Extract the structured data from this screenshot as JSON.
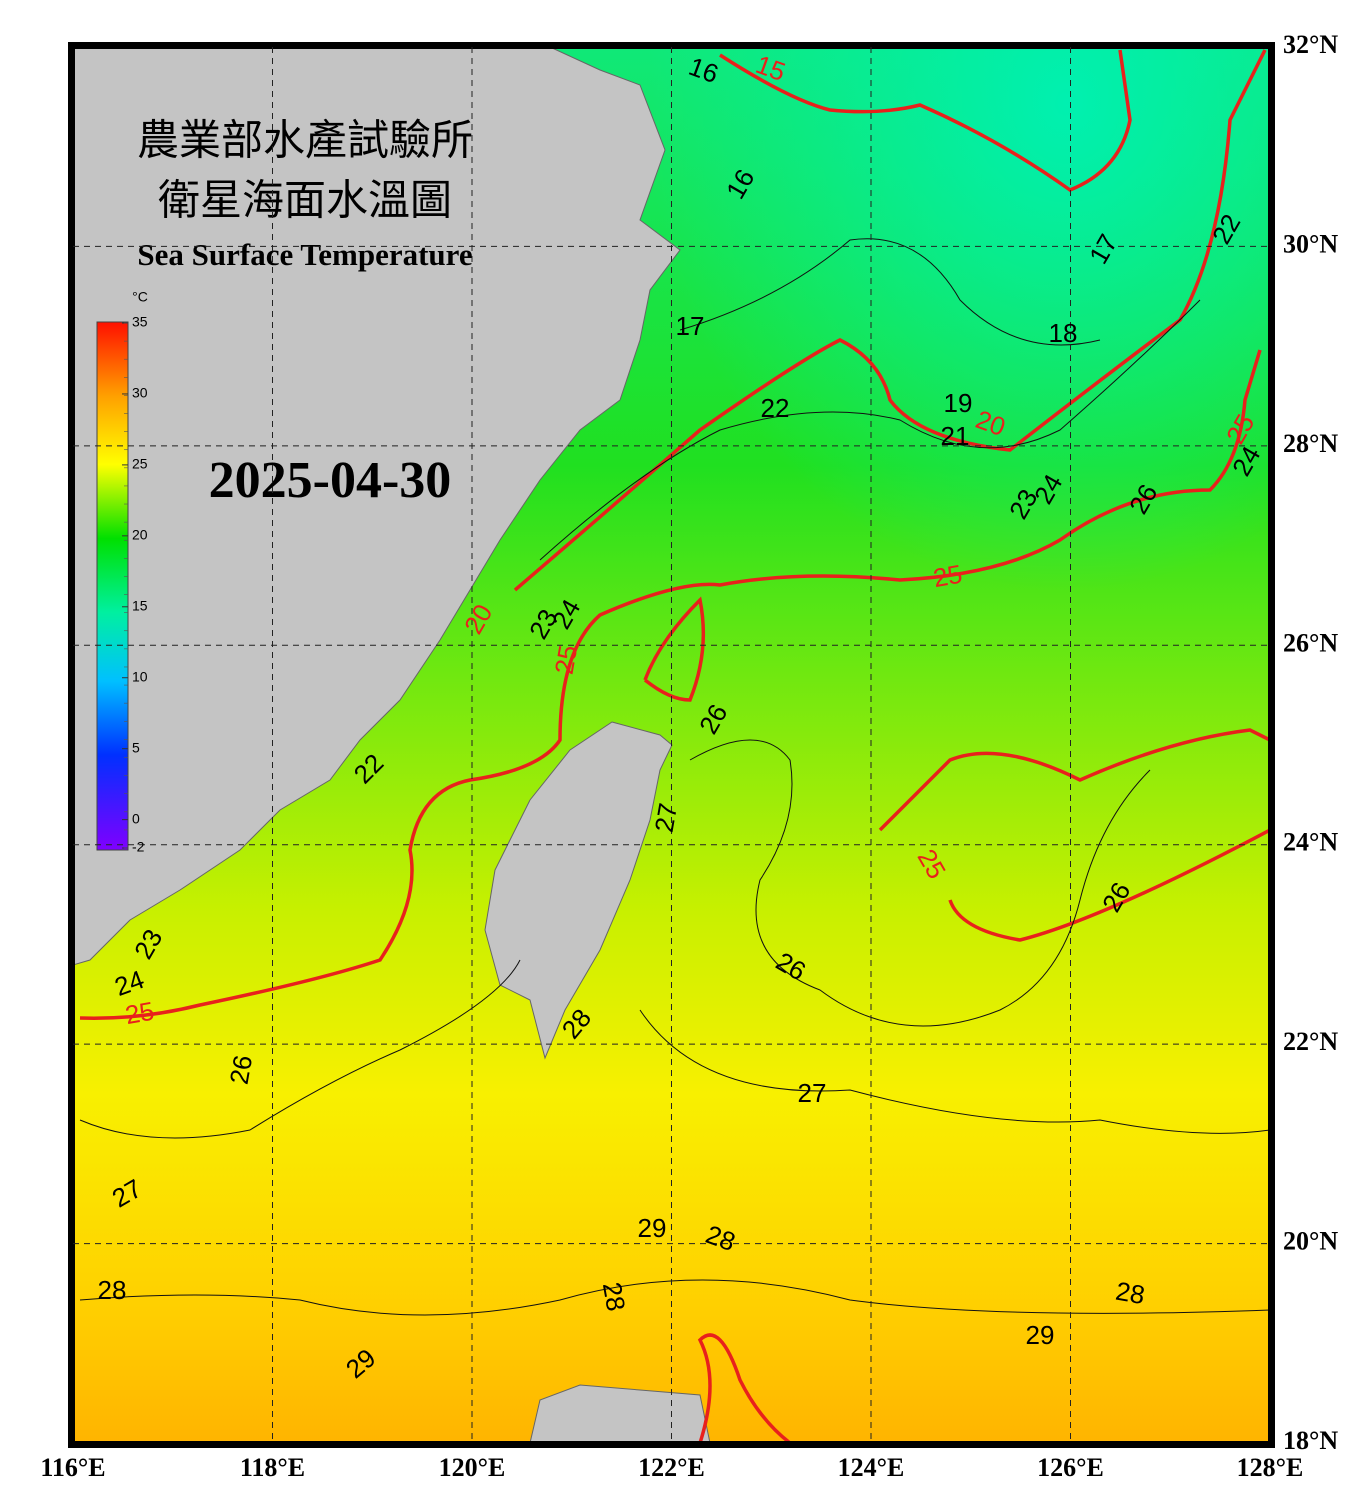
{
  "map": {
    "title_zh_1": "農業部水產試驗所",
    "title_zh_2": "衛星海面水溫圖",
    "title_en": "Sea Surface Temperature",
    "date": "2025-04-30",
    "xlim": [
      116,
      128
    ],
    "ylim": [
      18,
      32
    ],
    "xticks": [
      {
        "value": 116,
        "label": "116°E"
      },
      {
        "value": 118,
        "label": "118°E"
      },
      {
        "value": 120,
        "label": "120°E"
      },
      {
        "value": 122,
        "label": "122°E"
      },
      {
        "value": 124,
        "label": "124°E"
      },
      {
        "value": 126,
        "label": "126°E"
      },
      {
        "value": 128,
        "label": "128°E"
      }
    ],
    "yticks": [
      {
        "value": 32,
        "label": "32°N"
      },
      {
        "value": 30,
        "label": "30°N"
      },
      {
        "value": 28,
        "label": "28°N"
      },
      {
        "value": 26,
        "label": "26°N"
      },
      {
        "value": 24,
        "label": "24°N"
      },
      {
        "value": 22,
        "label": "22°N"
      },
      {
        "value": 20,
        "label": "20°N"
      },
      {
        "value": 18,
        "label": "18°N"
      }
    ],
    "grid": true,
    "colorbar": {
      "unit": "°C",
      "lim": [
        -2,
        35
      ],
      "ticks": [
        35,
        30,
        25,
        20,
        15,
        10,
        5,
        0,
        -2
      ]
    },
    "major_contour_interval": 5,
    "major_contour_color": "#e8211c",
    "contour_labels": [
      16,
      15,
      16,
      17,
      22,
      17,
      18,
      22,
      19,
      20,
      21,
      25,
      24,
      24,
      23,
      26,
      25,
      20,
      23,
      24,
      25,
      26,
      22,
      27,
      25,
      26,
      26,
      23,
      24,
      25,
      28,
      26,
      27,
      27,
      29,
      28,
      28,
      28,
      28,
      29,
      29
    ]
  }
}
